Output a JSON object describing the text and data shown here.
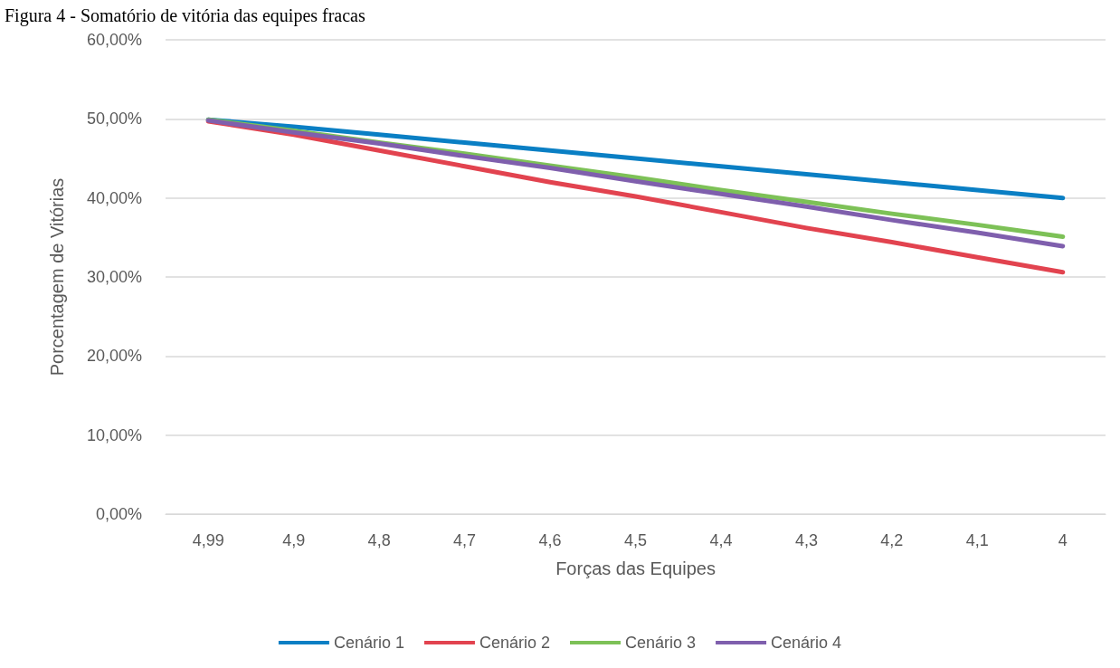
{
  "chart_data": {
    "type": "line",
    "title": "Figura 4 - Somatório de vitória das equipes fracas",
    "xlabel": "Forças das Equipes",
    "ylabel": "Porcentagem de Vitórias",
    "categories": [
      "4,99",
      "4,9",
      "4,8",
      "4,7",
      "4,6",
      "4,5",
      "4,4",
      "4,3",
      "4,2",
      "4,1",
      "4"
    ],
    "series": [
      {
        "name": "Cenário 1",
        "color": "#0a7fc4",
        "values": [
          49.9,
          49,
          48,
          47,
          46,
          45,
          44,
          43,
          42,
          41,
          40
        ]
      },
      {
        "name": "Cenário 2",
        "color": "#e2434f",
        "values": [
          49.7,
          48,
          46,
          44,
          42,
          40.2,
          38.2,
          36.2,
          34.4,
          32.5,
          30.6
        ]
      },
      {
        "name": "Cenário 3",
        "color": "#7dc157",
        "values": [
          49.9,
          48.5,
          47,
          45.6,
          44.1,
          42.6,
          41,
          39.5,
          38,
          36.6,
          35.1
        ]
      },
      {
        "name": "Cenário 4",
        "color": "#7f5fad",
        "values": [
          49.8,
          48.3,
          46.9,
          45.3,
          43.8,
          42.1,
          40.5,
          38.9,
          37.2,
          35.6,
          33.9
        ]
      }
    ],
    "ylim": [
      0,
      60
    ],
    "yticks": [
      {
        "value": 0,
        "label": "0,00%"
      },
      {
        "value": 10,
        "label": "10,00%"
      },
      {
        "value": 20,
        "label": "20,00%"
      },
      {
        "value": 30,
        "label": "30,00%"
      },
      {
        "value": 40,
        "label": "40,00%"
      },
      {
        "value": 50,
        "label": "50,00%"
      },
      {
        "value": 60,
        "label": "60,00%"
      }
    ],
    "grid": "y",
    "legend": "bottom",
    "marker": "none",
    "line_style": "solid"
  }
}
